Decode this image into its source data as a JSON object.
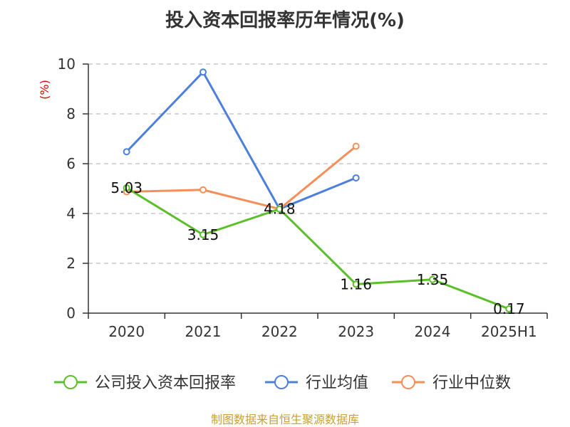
{
  "chart_data": {
    "type": "line",
    "title": "投入资本回报率历年情况(%)",
    "ylabel": "(%)",
    "xlabel": "",
    "categories": [
      "2020",
      "2021",
      "2022",
      "2023",
      "2024",
      "2025H1"
    ],
    "ylim": [
      0,
      10
    ],
    "yticks": [
      0,
      2,
      4,
      6,
      8,
      10
    ],
    "grid": true,
    "legend_position": "bottom",
    "series": [
      {
        "name": "公司投入资本回报率",
        "color": "#5cbf2a",
        "values": [
          5.03,
          3.15,
          4.18,
          1.16,
          1.35,
          0.17
        ],
        "labels": true
      },
      {
        "name": "行业均值",
        "color": "#4d7fdc",
        "values": [
          6.48,
          9.68,
          4.18,
          5.43,
          null,
          null
        ],
        "labels": false
      },
      {
        "name": "行业中位数",
        "color": "#f58f5a",
        "values": [
          4.87,
          4.95,
          4.18,
          6.7,
          null,
          null
        ],
        "labels": false
      }
    ]
  },
  "source": "制图数据来自恒生聚源数据库"
}
